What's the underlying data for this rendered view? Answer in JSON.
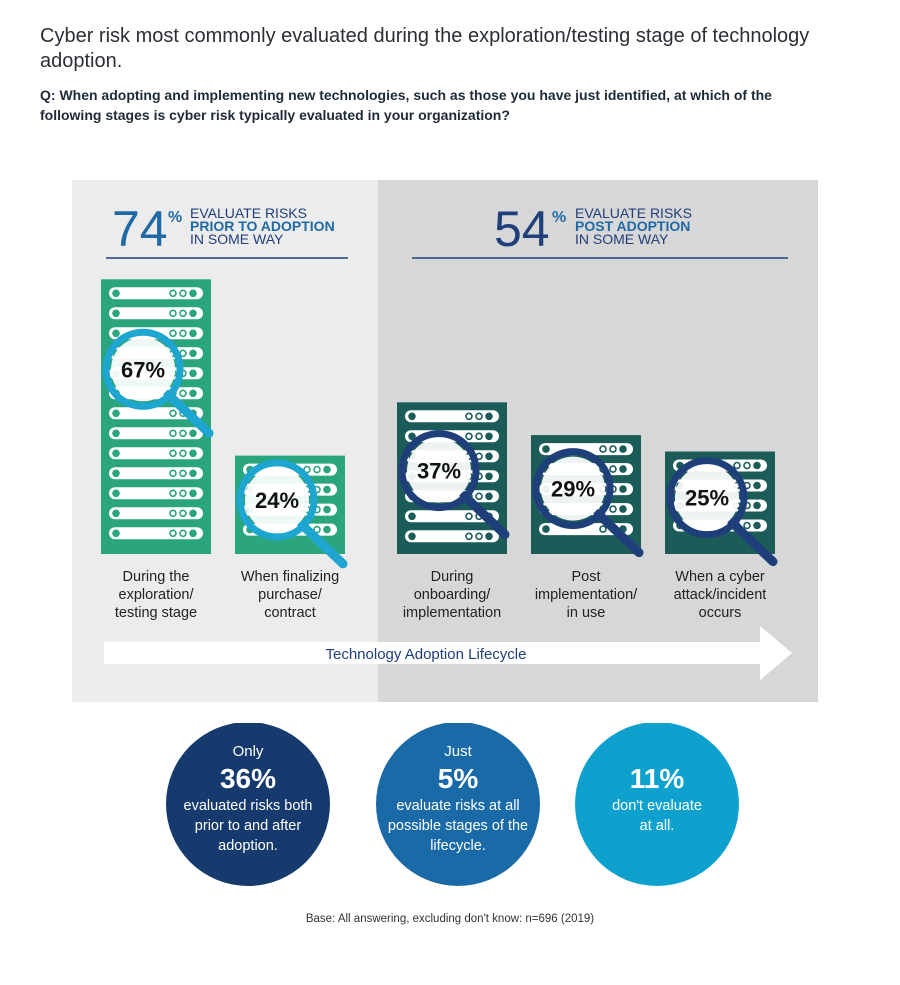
{
  "title": "Cyber risk most commonly evaluated during the exploration/testing stage of technology adoption.",
  "question": "Q: When adopting and implementing new technologies, such as those you have just identified, at which of the following stages is cyber risk typically evaluated in your organization?",
  "colors": {
    "green": "#2aa57e",
    "teal": "#1b5c58",
    "navy": "#1f3f7a",
    "lens": "#1ea5d0",
    "panel_left": "#ececec",
    "panel_right": "#d7d7d7"
  },
  "summary": {
    "prior": {
      "value": "74",
      "unit": "%",
      "line1": "EVALUATE RISKS",
      "line2": "PRIOR TO ADOPTION",
      "line3": "IN SOME WAY"
    },
    "post": {
      "value": "54",
      "unit": "%",
      "line1": "EVALUATE RISKS",
      "line2": "POST ADOPTION",
      "line3": "IN SOME WAY"
    }
  },
  "chart_data": {
    "type": "bar",
    "categories": [
      "During the exploration/ testing stage",
      "When finalizing purchase/ contract",
      "During onboarding/ implementation",
      "Post implementation/ in use",
      "When a cyber attack/incident occurs"
    ],
    "values": [
      67,
      24,
      37,
      29,
      25
    ],
    "unit": "%",
    "value_labels": [
      "67%",
      "24%",
      "37%",
      "29%",
      "25%"
    ],
    "label_lines": [
      [
        "During the",
        "exploration/",
        "testing stage"
      ],
      [
        "When finalizing",
        "purchase/",
        "contract"
      ],
      [
        "During",
        "onboarding/",
        "implementation"
      ],
      [
        "Post",
        "implementation/",
        "in use"
      ],
      [
        "When a cyber",
        "attack/incident",
        "occurs"
      ]
    ],
    "groups": [
      "prior",
      "prior",
      "post",
      "post",
      "post"
    ],
    "xlabel": "Technology Adoption Lifecycle"
  },
  "circles": [
    {
      "pre": "Only",
      "value": "36%",
      "lines": [
        "evaluated risks both",
        "prior to and after",
        "adoption."
      ]
    },
    {
      "pre": "Just",
      "value": "5%",
      "lines": [
        "evaluate risks at all",
        "possible stages of the",
        "lifecycle."
      ]
    },
    {
      "pre": "",
      "value": "11%",
      "lines": [
        "don't evaluate",
        "at all."
      ]
    }
  ],
  "base_note": "Base: All answering, excluding don't know: n=696 (2019)"
}
